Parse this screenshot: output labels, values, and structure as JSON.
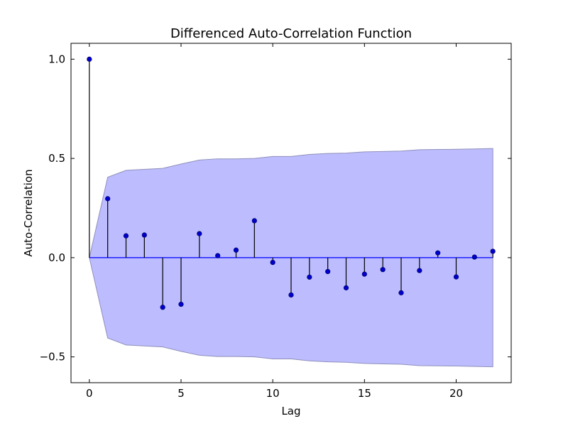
{
  "chart_data": {
    "type": "stem",
    "title": "Differenced Auto-Correlation Function",
    "xlabel": "Lag",
    "ylabel": "Auto-Correlation",
    "xlim": [
      -1,
      23
    ],
    "ylim": [
      -0.63,
      1.08
    ],
    "xticks": [
      0,
      5,
      10,
      15,
      20
    ],
    "xtick_labels": [
      "0",
      "5",
      "10",
      "15",
      "20"
    ],
    "yticks": [
      -0.5,
      0.0,
      0.5,
      1.0
    ],
    "ytick_labels": [
      "−0.5",
      "0.0",
      "0.5",
      "1.0"
    ],
    "grid": false,
    "colors": {
      "stem_line": "#000000",
      "marker": "#0000cc",
      "baseline": "#0000ff",
      "confidence_fill": "#bcbcff",
      "confidence_edge": "#9090bb"
    },
    "lags": [
      0,
      1,
      2,
      3,
      4,
      5,
      6,
      7,
      8,
      9,
      10,
      11,
      12,
      13,
      14,
      15,
      16,
      17,
      18,
      19,
      20,
      21,
      22
    ],
    "acf": [
      1.0,
      0.297,
      0.11,
      0.114,
      -0.25,
      -0.235,
      0.121,
      0.01,
      0.038,
      0.186,
      -0.024,
      -0.188,
      -0.098,
      -0.07,
      -0.152,
      -0.083,
      -0.06,
      -0.177,
      -0.065,
      0.024,
      -0.097,
      0.003,
      0.032
    ],
    "confidence_band": [
      0.0,
      0.405,
      0.44,
      0.445,
      0.45,
      0.472,
      0.492,
      0.498,
      0.498,
      0.5,
      0.51,
      0.51,
      0.52,
      0.525,
      0.527,
      0.533,
      0.535,
      0.537,
      0.544,
      0.545,
      0.546,
      0.548,
      0.55
    ]
  }
}
